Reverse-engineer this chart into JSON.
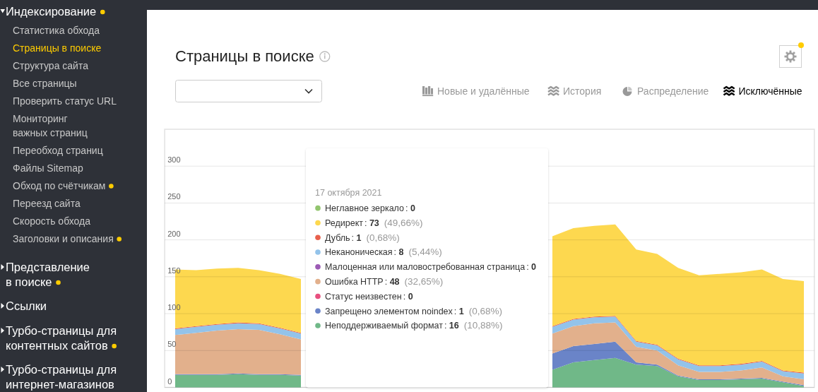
{
  "chart_data": [
    {
      "type": "other",
      "title": "Индексирование",
      "annotations": [
        "Статистика обхода",
        "Страницы в поиске",
        "Структура сайта",
        "Все страницы",
        "Проверить статус URL",
        "Мониторинг\nважных страниц",
        "Переобход страниц",
        "Файлы Sitemap",
        "Обход по счётчикам",
        "Переезд сайта",
        "Скорость обхода",
        "Заголовки и описания"
      ],
      "colors": [
        "#c8c8c8",
        "#ffcc00",
        "#c8c8c8",
        "#c8c8c8",
        "#c8c8c8",
        "#c8c8c8",
        "#c8c8c8",
        "#c8c8c8",
        "#c8c8c8",
        "#c8c8c8",
        "#c8c8c8",
        "#c8c8c8"
      ]
    },
    {
      "type": "other",
      "title": "Представление\nв поиске"
    },
    {
      "type": "other",
      "title": "Ссылки"
    },
    {
      "type": "other",
      "title": "Турбо-страницы для\nконтентных сайтов"
    },
    {
      "type": "other",
      "title": "Турбо-страницы для\nинтернет-магазинов"
    },
    {
      "type": "other",
      "title": "Страницы в поиске",
      "annotations": [
        "Новые и удалённые",
        "История",
        "Распределение",
        "Исключённые"
      ],
      "colors": [
        "#999999",
        "#999999",
        "#999999",
        "#000000"
      ]
    },
    {
      "type": "area",
      "stacked": true,
      "categories": [
        null,
        null,
        null,
        null,
        null,
        null,
        null,
        null,
        null,
        null,
        null,
        null,
        null,
        null,
        null,
        null,
        null,
        null,
        null,
        null,
        null,
        null,
        null,
        null,
        null,
        null,
        null,
        null,
        null,
        null,
        null
      ],
      "ylim": [
        0,
        350
      ],
      "yticks": [
        0,
        50,
        100,
        150,
        200,
        250,
        300
      ],
      "grid": "y",
      "tick_labels": "y",
      "legend": "center",
      "annotations": [
        "17 октября 2021",
        ": 0",
        ": 73 (49,66%)",
        ": 1 (0,68%)",
        ": 8 (5,44%)",
        ": 0",
        ": 48 (32,65%)",
        ": 0",
        ": 1 (0,68%)",
        ": 16 (10,88%)"
      ],
      "series": [
        {
          "name": "Неподдерживаемый формат",
          "color": "#70b888",
          "values": [
            17,
            17,
            17,
            18,
            17,
            17,
            16,
            null,
            null,
            null,
            null,
            null,
            null,
            null,
            null,
            null,
            null,
            null,
            24,
            34,
            37,
            40,
            31,
            29,
            15,
            10,
            10,
            11,
            12,
            7,
            2
          ]
        },
        {
          "name": "Запрещено элементом noindex",
          "color": "#6a84c8",
          "values": [
            1,
            1,
            1,
            1,
            1,
            1,
            1,
            null,
            null,
            null,
            null,
            null,
            null,
            null,
            null,
            null,
            null,
            null,
            22,
            22,
            22,
            22,
            3,
            2,
            1,
            1,
            1,
            1,
            1,
            1,
            1
          ]
        },
        {
          "name": "Статус неизвестен",
          "color": "#e8507f",
          "values": [
            null,
            null,
            null,
            null,
            null,
            null,
            null,
            null,
            null,
            null,
            null,
            null,
            null,
            null,
            null,
            null,
            null,
            null,
            null,
            null,
            null,
            null,
            null,
            null,
            null,
            null,
            null,
            null,
            null,
            null,
            null
          ]
        },
        {
          "name": "Ошибка HTTP",
          "color": "#e2b08c",
          "values": [
            53,
            56,
            59,
            60,
            60,
            54,
            48,
            null,
            null,
            null,
            null,
            null,
            null,
            null,
            null,
            null,
            null,
            null,
            27,
            27,
            28,
            26,
            21,
            19,
            14,
            10,
            10,
            11,
            14,
            7,
            8
          ]
        },
        {
          "name": "Малоценная или маловостребованная страница",
          "color": "#9c5bb5",
          "values": [
            null,
            null,
            null,
            null,
            null,
            null,
            null,
            null,
            null,
            null,
            null,
            null,
            null,
            null,
            null,
            null,
            null,
            null,
            null,
            null,
            null,
            null,
            null,
            null,
            null,
            null,
            null,
            null,
            null,
            null,
            null
          ]
        },
        {
          "name": "Неканоническая",
          "color": "#93c3ea",
          "values": [
            8,
            8,
            8,
            8,
            8,
            8,
            8,
            null,
            null,
            null,
            null,
            null,
            null,
            null,
            null,
            null,
            null,
            null,
            9,
            9,
            8,
            8,
            7,
            7,
            8,
            8,
            8,
            8,
            8,
            7,
            8
          ]
        },
        {
          "name": "Дубль",
          "color": "#e8604c",
          "values": [
            1,
            1,
            1,
            1,
            1,
            1,
            1,
            null,
            null,
            null,
            null,
            null,
            null,
            null,
            null,
            null,
            null,
            null,
            1,
            1,
            1,
            1,
            1,
            1,
            1,
            1,
            1,
            1,
            1,
            1,
            1
          ]
        },
        {
          "name": "Редирект",
          "color": "#fdd84f",
          "values": [
            80,
            76,
            75,
            74,
            72,
            73,
            73,
            null,
            null,
            null,
            null,
            null,
            null,
            null,
            null,
            null,
            null,
            null,
            122,
            123,
            123,
            124,
            124,
            123,
            123,
            122,
            124,
            124,
            124,
            124,
            124
          ]
        },
        {
          "name": "Неглавное зеркало",
          "color": "#92c56e",
          "values": [
            null,
            null,
            null,
            null,
            null,
            null,
            null,
            null,
            null,
            null,
            null,
            null,
            null,
            null,
            null,
            null,
            null,
            null,
            null,
            null,
            null,
            null,
            null,
            null,
            null,
            null,
            null,
            null,
            null,
            null,
            null
          ]
        }
      ]
    }
  ]
}
